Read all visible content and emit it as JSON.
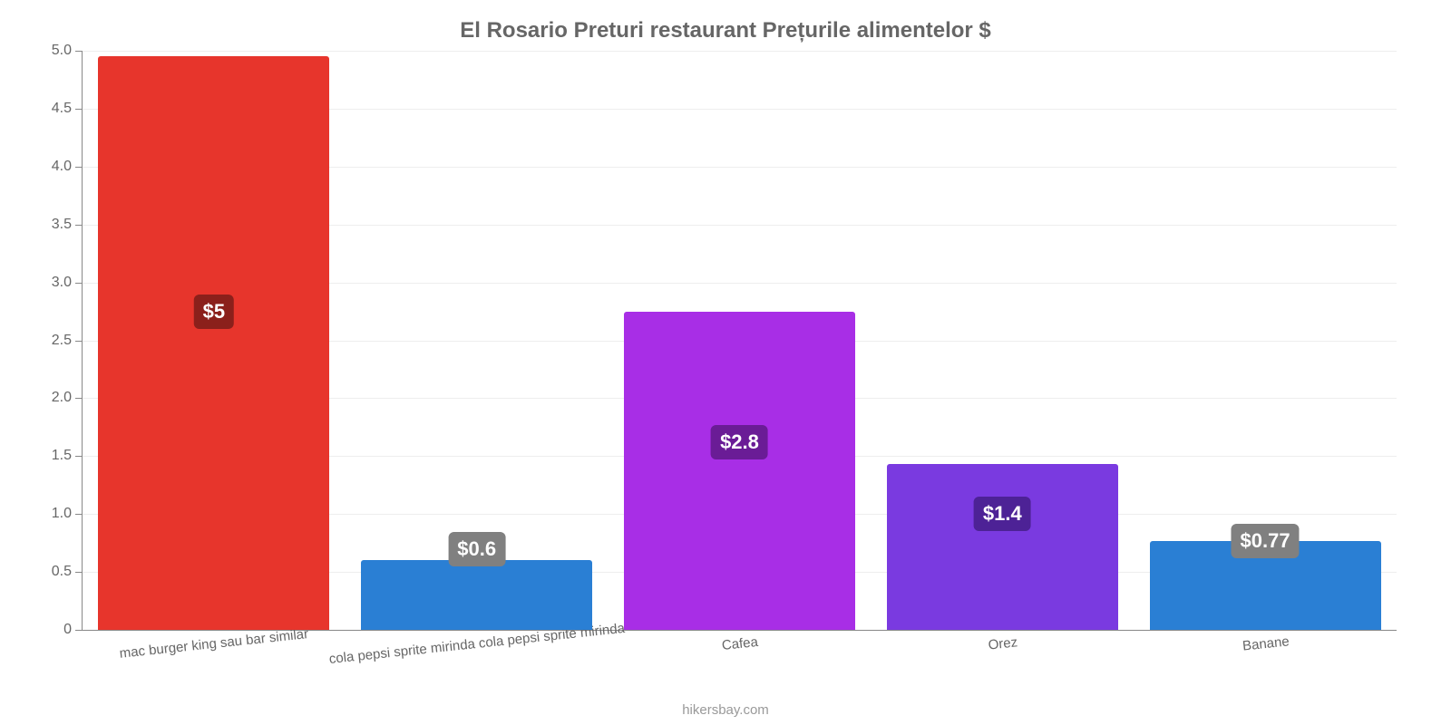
{
  "chart": {
    "type": "bar",
    "title": "El Rosario Preturi restaurant Prețurile alimentelor $",
    "title_fontsize": 24,
    "title_color": "#666666",
    "credit": "hikersbay.com",
    "credit_color": "#999999",
    "background_color": "#ffffff",
    "axis_color": "#888888",
    "tick_label_color": "#666666",
    "tick_label_fontsize": 16,
    "grid_color": "#eeeeee",
    "y": {
      "min": 0,
      "max": 5.0,
      "ticks": [
        0,
        0.5,
        1.0,
        1.5,
        2.0,
        2.5,
        3.0,
        3.5,
        4.0,
        4.5,
        5.0
      ],
      "tick_labels": [
        "0",
        "0.5",
        "1.0",
        "1.5",
        "2.0",
        "2.5",
        "3.0",
        "3.5",
        "4.0",
        "4.5",
        "5.0"
      ]
    },
    "bar_width_pct": 88,
    "value_label_fontsize": 22,
    "bars": [
      {
        "category": "mac burger king sau bar similar",
        "value": 4.95,
        "display": "$5",
        "color": "#e7352c",
        "label_bg": "#8b201b",
        "label_y": 2.75
      },
      {
        "category": "cola pepsi sprite mirinda cola pepsi sprite mirinda",
        "value": 0.6,
        "display": "$0.6",
        "color": "#2a7fd4",
        "label_bg": "#808080",
        "label_y": 0.7
      },
      {
        "category": "Cafea",
        "value": 2.75,
        "display": "$2.8",
        "color": "#a82ee6",
        "label_bg": "#6a1c96",
        "label_y": 1.62
      },
      {
        "category": "Orez",
        "value": 1.43,
        "display": "$1.4",
        "color": "#7a3ae0",
        "label_bg": "#4d2296",
        "label_y": 1.0
      },
      {
        "category": "Banane",
        "value": 0.77,
        "display": "$0.77",
        "color": "#2a7fd4",
        "label_bg": "#808080",
        "label_y": 0.77
      }
    ]
  }
}
